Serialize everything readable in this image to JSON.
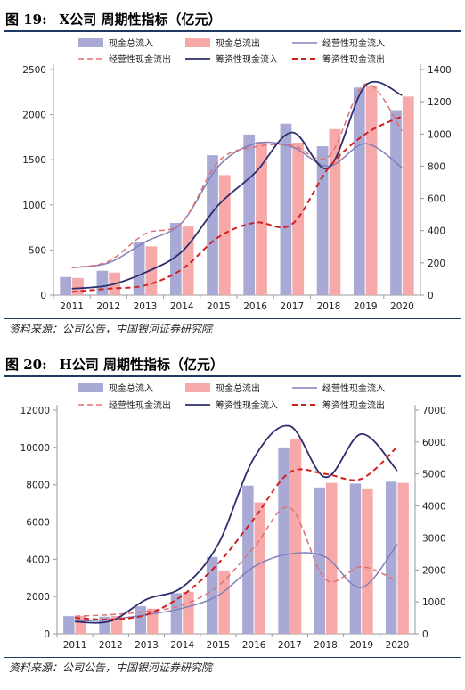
{
  "figures": [
    {
      "number": "图 19:",
      "title": "X公司 周期性指标（亿元）",
      "source": "资料来源：公司公告，中国银河证券研究院"
    },
    {
      "number": "图 20:",
      "title": "H公司 周期性指标（亿元）",
      "source": "资料来源：公司公告，中国银河证券研究院"
    }
  ],
  "colors": {
    "bar_inflow": "#a9a9d6",
    "bar_outflow": "#f7a8a8",
    "op_in_line": "#8080b8",
    "op_out_line": "#e07070",
    "fin_in_line": "#2e2e6e",
    "fin_out_line": "#d02020",
    "title_rule": "#1f3864"
  },
  "chart_data": [
    {
      "type": "bar",
      "categories": [
        "2011",
        "2012",
        "2013",
        "2014",
        "2015",
        "2016",
        "2017",
        "2018",
        "2019",
        "2020"
      ],
      "ylim": [
        0,
        2500
      ],
      "y2lim": [
        0,
        1400
      ],
      "yticks": [
        0,
        500,
        1000,
        1500,
        2000,
        2500
      ],
      "y2ticks": [
        0,
        200,
        400,
        600,
        800,
        1000,
        1200,
        1400
      ],
      "legend": [
        "现金总流入",
        "现金总流出",
        "经营性现金流入",
        "经营性现金流出",
        "筹资性现金流入",
        "筹资性现金流出"
      ],
      "series": [
        {
          "name": "现金总流入",
          "axis": "left",
          "kind": "bar",
          "values": [
            200,
            270,
            590,
            800,
            1550,
            1780,
            1900,
            1650,
            2300,
            2050
          ]
        },
        {
          "name": "现金总流出",
          "axis": "left",
          "kind": "bar",
          "values": [
            190,
            250,
            540,
            760,
            1330,
            1700,
            1690,
            1840,
            2320,
            2200
          ]
        },
        {
          "name": "经营性现金流入",
          "axis": "right",
          "kind": "line",
          "values": [
            170,
            200,
            330,
            450,
            800,
            940,
            920,
            800,
            940,
            790
          ]
        },
        {
          "name": "经营性现金流出",
          "axis": "right",
          "kind": "dash",
          "values": [
            170,
            210,
            380,
            450,
            830,
            920,
            930,
            860,
            1310,
            1020
          ]
        },
        {
          "name": "筹资性现金流入",
          "axis": "right",
          "kind": "line",
          "values": [
            40,
            60,
            140,
            270,
            560,
            760,
            1010,
            790,
            1300,
            1240
          ]
        },
        {
          "name": "筹资性现金流出",
          "axis": "right",
          "kind": "dash",
          "values": [
            20,
            40,
            60,
            160,
            360,
            450,
            440,
            790,
            1000,
            1110
          ]
        }
      ]
    },
    {
      "type": "bar",
      "categories": [
        "2011",
        "2012",
        "2013",
        "2014",
        "2015",
        "2016",
        "2017",
        "2018",
        "2019",
        "2020"
      ],
      "ylim": [
        0,
        12000
      ],
      "y2lim": [
        0,
        7000
      ],
      "yticks": [
        0,
        2000,
        4000,
        6000,
        8000,
        10000,
        12000
      ],
      "y2ticks": [
        0,
        1000,
        2000,
        3000,
        4000,
        5000,
        6000,
        7000
      ],
      "legend": [
        "现金总流入",
        "现金总流出",
        "经营性现金流入",
        "经营性现金流出",
        "筹资性现金流入",
        "筹资性现金流出"
      ],
      "series": [
        {
          "name": "现金总流入",
          "axis": "left",
          "kind": "bar",
          "values": [
            950,
            920,
            1480,
            2180,
            4120,
            7950,
            10000,
            7850,
            8060,
            8160
          ]
        },
        {
          "name": "现金总流出",
          "axis": "left",
          "kind": "bar",
          "values": [
            960,
            960,
            1350,
            2250,
            3400,
            7050,
            10450,
            8100,
            7800,
            8100
          ]
        },
        {
          "name": "经营性现金流入",
          "axis": "right",
          "kind": "line",
          "values": [
            400,
            450,
            600,
            800,
            1200,
            2100,
            2500,
            2400,
            1450,
            2800
          ]
        },
        {
          "name": "经营性现金流出",
          "axis": "right",
          "kind": "dash",
          "values": [
            550,
            600,
            700,
            900,
            1500,
            2700,
            3950,
            1700,
            2100,
            1650
          ]
        },
        {
          "name": "筹资性现金流入",
          "axis": "right",
          "kind": "line",
          "values": [
            380,
            400,
            1080,
            1460,
            2800,
            5500,
            6500,
            4900,
            6250,
            5100
          ]
        },
        {
          "name": "筹资性现金流出",
          "axis": "right",
          "kind": "dash",
          "values": [
            500,
            450,
            600,
            1200,
            2200,
            3600,
            5050,
            5000,
            4850,
            5850
          ]
        }
      ]
    }
  ]
}
